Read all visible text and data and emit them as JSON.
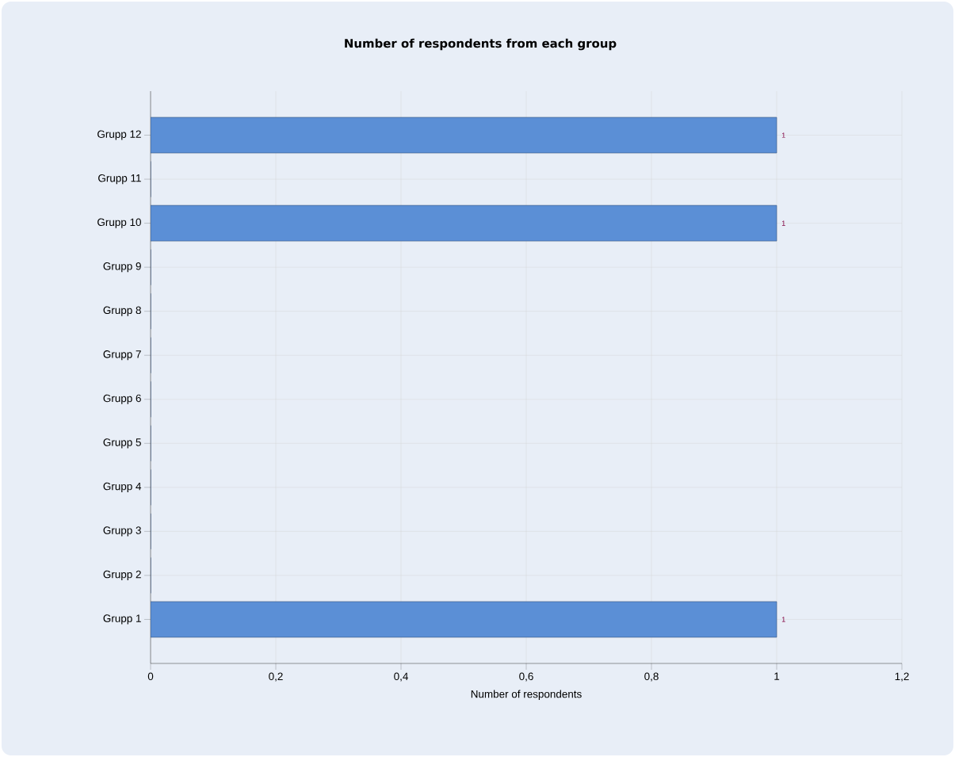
{
  "chart_data": {
    "type": "bar",
    "orientation": "horizontal",
    "title": "Number of respondents from each group",
    "xlabel": "Number of respondents",
    "categories": [
      "Grupp 12",
      "Grupp 11",
      "Grupp 10",
      "Grupp 9",
      "Grupp 8",
      "Grupp 7",
      "Grupp 6",
      "Grupp 5",
      "Grupp 4",
      "Grupp 3",
      "Grupp 2",
      "Grupp 1"
    ],
    "values": [
      1,
      0,
      1,
      0,
      0,
      0,
      0,
      0,
      0,
      0,
      0,
      1
    ],
    "value_labels": [
      "1",
      null,
      "1",
      null,
      null,
      null,
      null,
      null,
      null,
      null,
      null,
      "1"
    ],
    "color": "#5b8fd6",
    "xlim": [
      0,
      1.2
    ],
    "xticks": [
      0,
      {
        "value": 0.2,
        "label": "0,2"
      },
      {
        "value": 0.4,
        "label": "0,4"
      },
      {
        "value": 0.6,
        "label": "0,6"
      },
      {
        "value": 0.8,
        "label": "0,8"
      },
      1,
      {
        "value": 1.2,
        "label": "1,2"
      }
    ],
    "grid": true
  }
}
